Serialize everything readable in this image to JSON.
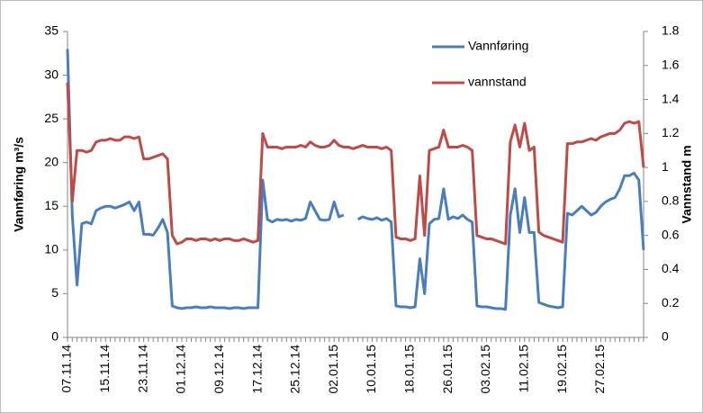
{
  "chart_data": {
    "type": "line",
    "y_label": "Vannføring m³/s",
    "y2_label": "Vannstand m",
    "legend": "top",
    "categories": [
      "07.11.14",
      null,
      null,
      null,
      null,
      null,
      null,
      null,
      "15.11.14",
      null,
      null,
      null,
      null,
      null,
      null,
      null,
      "23.11.14",
      null,
      null,
      null,
      null,
      null,
      null,
      null,
      "01.12.14",
      null,
      null,
      null,
      null,
      null,
      null,
      null,
      "09.12.14",
      null,
      null,
      null,
      null,
      null,
      null,
      null,
      "17.12.14",
      null,
      null,
      null,
      null,
      null,
      null,
      null,
      "25.12.14",
      null,
      null,
      null,
      null,
      null,
      null,
      null,
      "02.01.15",
      null,
      null,
      null,
      null,
      null,
      null,
      null,
      "10.01.15",
      null,
      null,
      null,
      null,
      null,
      null,
      null,
      "18.01.15",
      null,
      null,
      null,
      null,
      null,
      null,
      null,
      "26.01.15",
      null,
      null,
      null,
      null,
      null,
      null,
      null,
      "03.02.15",
      null,
      null,
      null,
      null,
      null,
      null,
      null,
      "11.02.15",
      null,
      null,
      null,
      null,
      null,
      null,
      null,
      "19.02.15",
      null,
      null,
      null,
      null,
      null,
      null,
      null,
      "27.02.15",
      null,
      null,
      null,
      null,
      null,
      null,
      null,
      null,
      null
    ],
    "series": [
      {
        "name": "Vannføring",
        "color": "#4a7ebb",
        "axis": "y",
        "values": [
          33,
          14,
          6,
          13,
          13.2,
          13,
          14.5,
          14.8,
          15,
          15,
          14.8,
          15,
          15.2,
          15.5,
          14.5,
          15.5,
          11.8,
          11.8,
          11.7,
          12.5,
          13.5,
          12,
          3.6,
          3.4,
          3.3,
          3.4,
          3.4,
          3.5,
          3.4,
          3.4,
          3.5,
          3.4,
          3.4,
          3.4,
          3.3,
          3.4,
          3.4,
          3.3,
          3.4,
          3.4,
          3.4,
          18,
          13.5,
          13.2,
          13.5,
          13.4,
          13.5,
          13.3,
          13.5,
          13.4,
          13.6,
          15.5,
          14.5,
          13.5,
          13.4,
          13.5,
          15.5,
          13.8,
          14,
          null,
          null,
          13.5,
          13.8,
          13.6,
          13.5,
          13.7,
          13.4,
          13.6,
          13.2,
          3.6,
          3.5,
          3.5,
          3.4,
          3.5,
          9,
          5,
          13,
          13.5,
          13.6,
          17,
          13.5,
          13.8,
          13.6,
          14,
          13.5,
          13.2,
          3.6,
          3.5,
          3.5,
          3.4,
          3.3,
          3.3,
          3.2,
          14,
          17,
          12,
          16,
          12,
          12,
          4,
          3.8,
          3.6,
          3.5,
          3.4,
          3.5,
          14.2,
          14,
          14.5,
          15,
          14.5,
          14,
          14.3,
          15,
          15.5,
          15.8,
          16,
          17,
          18.5,
          18.5,
          18.8,
          18,
          10
        ]
      },
      {
        "name": "vannstand",
        "color": "#be4b48",
        "axis": "y2",
        "values": [
          1.5,
          0.8,
          1.1,
          1.1,
          1.09,
          1.1,
          1.15,
          1.16,
          1.16,
          1.17,
          1.16,
          1.16,
          1.18,
          1.18,
          1.17,
          1.18,
          1.05,
          1.05,
          1.06,
          1.07,
          1.08,
          1.05,
          0.6,
          0.55,
          0.56,
          0.58,
          0.58,
          0.57,
          0.58,
          0.58,
          0.57,
          0.58,
          0.57,
          0.58,
          0.58,
          0.57,
          0.57,
          0.58,
          0.57,
          0.56,
          0.57,
          1.2,
          1.12,
          1.12,
          1.12,
          1.11,
          1.12,
          1.12,
          1.12,
          1.13,
          1.12,
          1.15,
          1.13,
          1.12,
          1.12,
          1.13,
          1.16,
          1.13,
          1.12,
          1.12,
          1.11,
          1.12,
          1.13,
          1.12,
          1.12,
          1.12,
          1.11,
          1.12,
          1.1,
          0.59,
          0.58,
          0.58,
          0.57,
          0.58,
          0.95,
          0.6,
          1.1,
          1.11,
          1.12,
          1.22,
          1.12,
          1.12,
          1.12,
          1.13,
          1.12,
          1.1,
          0.6,
          0.59,
          0.58,
          0.58,
          0.57,
          0.56,
          0.55,
          1.15,
          1.25,
          1.12,
          1.26,
          1.1,
          1.12,
          0.62,
          0.6,
          0.59,
          0.58,
          0.57,
          0.56,
          1.14,
          1.14,
          1.15,
          1.15,
          1.16,
          1.17,
          1.16,
          1.18,
          1.19,
          1.2,
          1.2,
          1.22,
          1.26,
          1.27,
          1.26,
          1.27,
          1.0
        ]
      }
    ],
    "ylim": [
      0,
      35
    ],
    "yticks": [
      0,
      5,
      10,
      15,
      20,
      25,
      30,
      35
    ],
    "y2lim": [
      0,
      1.8
    ],
    "y2ticks": [
      0,
      0.2,
      0.4,
      0.6,
      0.8,
      1,
      1.2,
      1.4,
      1.6,
      1.8
    ],
    "grid": false
  }
}
